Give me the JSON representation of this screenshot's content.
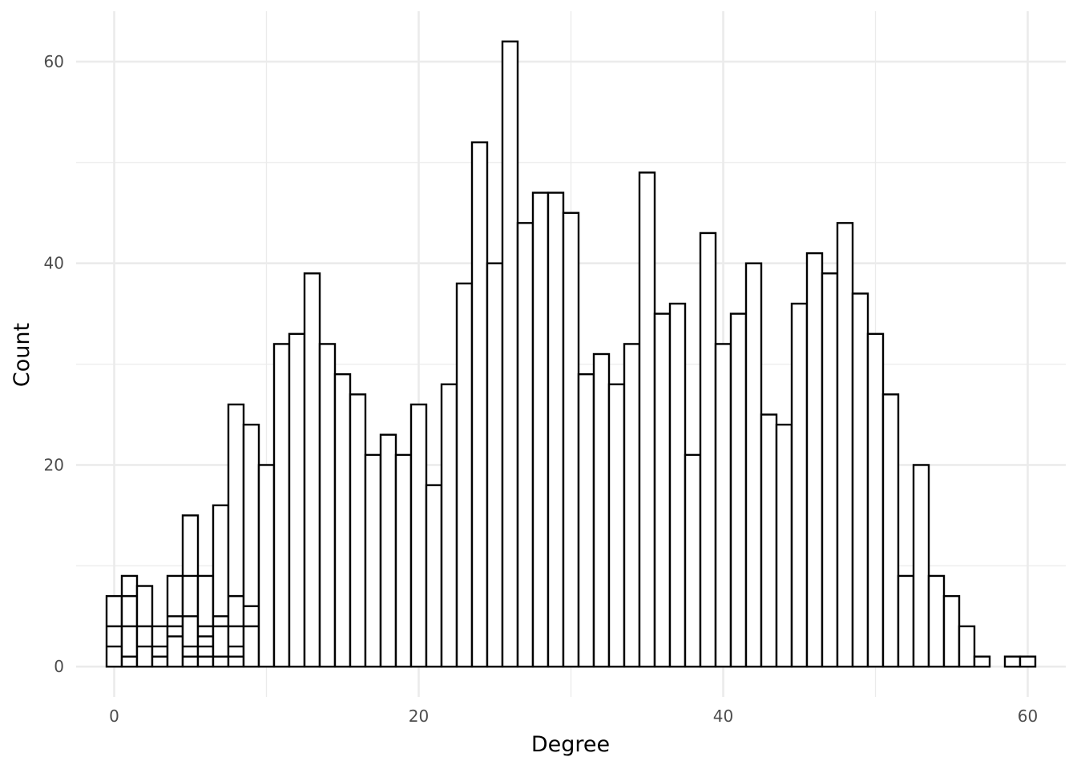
{
  "chart_data": {
    "type": "bar",
    "xlabel": "Degree",
    "ylabel": "Count",
    "xlim": [
      -2.5,
      62.5
    ],
    "ylim": [
      -3,
      65
    ],
    "x_ticks": [
      0,
      20,
      40,
      60
    ],
    "x_minor_ticks": [
      10,
      30,
      50
    ],
    "y_ticks": [
      0,
      20,
      40,
      60
    ],
    "y_minor_ticks": [
      10,
      30,
      50
    ],
    "grid": true,
    "bar_fill": "#ffffff",
    "bar_outline": "#000000",
    "grid_color": "#ebebeb",
    "x": [
      0,
      1,
      2,
      3,
      4,
      5,
      6,
      7,
      8,
      9,
      10,
      11,
      12,
      13,
      14,
      15,
      16,
      17,
      18,
      19,
      20,
      21,
      22,
      23,
      24,
      25,
      26,
      27,
      28,
      29,
      30,
      31,
      32,
      33,
      34,
      35,
      36,
      37,
      38,
      39,
      40,
      41,
      42,
      43,
      44,
      45,
      46,
      47,
      48,
      49,
      50,
      51,
      52,
      53,
      54,
      55,
      56,
      57,
      58,
      59,
      60
    ],
    "values": [
      7,
      9,
      8,
      4,
      9,
      15,
      9,
      16,
      26,
      24,
      20,
      32,
      33,
      39,
      32,
      29,
      27,
      21,
      23,
      21,
      26,
      18,
      28,
      38,
      52,
      40,
      62,
      44,
      47,
      47,
      45,
      29,
      31,
      28,
      32,
      49,
      35,
      36,
      21,
      43,
      32,
      35,
      40,
      25,
      24,
      36,
      41,
      39,
      44,
      37,
      33,
      27,
      9,
      20,
      9,
      7,
      4,
      1,
      0,
      1,
      1
    ],
    "stack_boundaries": [
      {
        "x": 0,
        "levels": [
          2,
          4
        ]
      },
      {
        "x": 1,
        "levels": [
          1,
          4,
          7
        ]
      },
      {
        "x": 2,
        "levels": [
          2,
          4
        ]
      },
      {
        "x": 3,
        "levels": [
          1,
          2
        ]
      },
      {
        "x": 4,
        "levels": [
          3,
          4,
          5
        ]
      },
      {
        "x": 5,
        "levels": [
          1,
          2,
          5,
          9
        ]
      },
      {
        "x": 6,
        "levels": [
          1,
          2,
          3,
          4
        ]
      },
      {
        "x": 7,
        "levels": [
          1,
          4,
          5
        ]
      },
      {
        "x": 8,
        "levels": [
          1,
          2,
          4,
          7
        ]
      },
      {
        "x": 9,
        "levels": [
          4,
          6
        ]
      }
    ]
  }
}
